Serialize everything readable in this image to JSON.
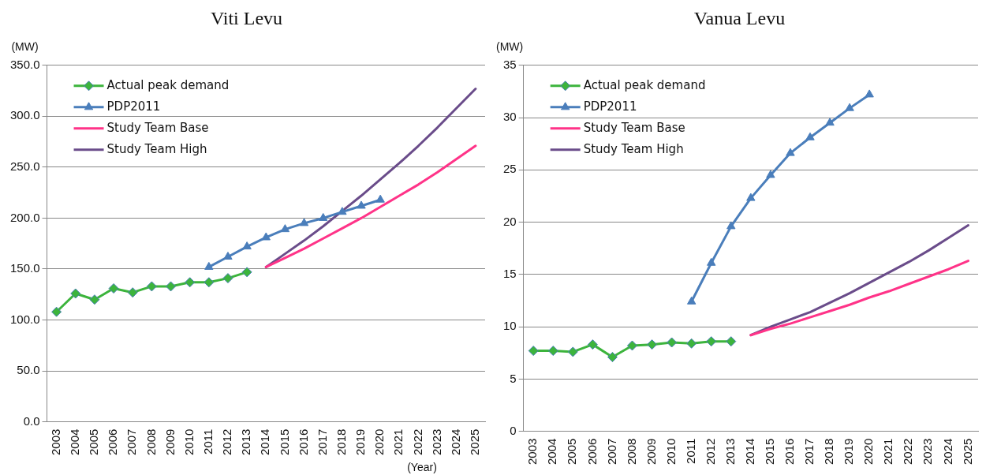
{
  "chart_data": [
    {
      "type": "line",
      "title": "Viti Levu",
      "ylabel": "(MW)",
      "xlabel": "(Year)",
      "categories": [
        "2003",
        "2004",
        "2005",
        "2006",
        "2007",
        "2008",
        "2009",
        "2010",
        "2011",
        "2012",
        "2013",
        "2014",
        "2015",
        "2016",
        "2017",
        "2018",
        "2019",
        "2020",
        "2021",
        "2022",
        "2023",
        "2024",
        "2025"
      ],
      "ylim": [
        0,
        350
      ],
      "yticks": [
        {
          "value": 0,
          "label": "0.0"
        },
        {
          "value": 50,
          "label": "50.0"
        },
        {
          "value": 100,
          "label": "100.0"
        },
        {
          "value": 150,
          "label": "150.0"
        },
        {
          "value": 200,
          "label": "200.0"
        },
        {
          "value": 250,
          "label": "250.0"
        },
        {
          "value": 300,
          "label": "300.0"
        },
        {
          "value": 350,
          "label": "350.0"
        }
      ],
      "grid": "y",
      "legend": "top left",
      "line_style": "solid",
      "series": [
        {
          "name": "Actual peak demand",
          "color": "#3cb43c",
          "marker": "diamond",
          "values": [
            108,
            126,
            120,
            131,
            127,
            133,
            133,
            137,
            137,
            141,
            147,
            null,
            null,
            null,
            null,
            null,
            null,
            null,
            null,
            null,
            null,
            null,
            null
          ]
        },
        {
          "name": "PDP2011",
          "color": "#4a7ebb",
          "marker": "triangle",
          "values": [
            null,
            null,
            null,
            null,
            null,
            null,
            null,
            null,
            152,
            162,
            172,
            181,
            189,
            195,
            200,
            206,
            212,
            218,
            null,
            null,
            null,
            null,
            null
          ]
        },
        {
          "name": "Study Team Base",
          "color": "#ff3388",
          "marker": "none",
          "values": [
            null,
            null,
            null,
            null,
            null,
            null,
            null,
            null,
            null,
            null,
            null,
            152,
            161,
            170,
            180,
            190,
            200,
            211,
            222,
            233,
            245,
            258,
            271
          ]
        },
        {
          "name": "Study Team High",
          "color": "#6a4c8a",
          "marker": "none",
          "values": [
            null,
            null,
            null,
            null,
            null,
            null,
            null,
            null,
            null,
            null,
            null,
            152,
            165,
            178,
            192,
            207,
            222,
            238,
            254,
            271,
            289,
            308,
            327
          ]
        }
      ]
    },
    {
      "type": "line",
      "title": "Vanua Levu",
      "ylabel": "(MW)",
      "categories": [
        "2003",
        "2004",
        "2005",
        "2006",
        "2007",
        "2008",
        "2009",
        "2010",
        "2011",
        "2012",
        "2013",
        "2014",
        "2015",
        "2016",
        "2017",
        "2018",
        "2019",
        "2020",
        "2021",
        "2022",
        "2023",
        "2024",
        "2025"
      ],
      "ylim": [
        0,
        35
      ],
      "yticks": [
        0,
        5,
        10,
        15,
        20,
        25,
        30,
        35
      ],
      "grid": "y",
      "legend": "top left",
      "line_style": "solid",
      "series": [
        {
          "name": "Actual peak demand",
          "color": "#3cb43c",
          "marker": "diamond",
          "values": [
            7.7,
            7.7,
            7.6,
            8.3,
            7.1,
            8.2,
            8.3,
            8.5,
            8.4,
            8.6,
            8.6,
            null,
            null,
            null,
            null,
            null,
            null,
            null,
            null,
            null,
            null,
            null,
            null
          ]
        },
        {
          "name": "PDP2011",
          "color": "#4a7ebb",
          "marker": "triangle",
          "values": [
            null,
            null,
            null,
            null,
            null,
            null,
            null,
            null,
            12.4,
            16.1,
            19.6,
            22.3,
            24.5,
            26.6,
            28.1,
            29.5,
            30.9,
            32.2,
            null,
            null,
            null,
            null,
            null
          ]
        },
        {
          "name": "Study Team Base",
          "color": "#ff3388",
          "marker": "none",
          "values": [
            null,
            null,
            null,
            null,
            null,
            null,
            null,
            null,
            null,
            null,
            null,
            9.2,
            9.8,
            10.3,
            10.9,
            11.5,
            12.1,
            12.8,
            13.4,
            14.1,
            14.8,
            15.5,
            16.3
          ]
        },
        {
          "name": "Study Team High",
          "color": "#6a4c8a",
          "marker": "none",
          "values": [
            null,
            null,
            null,
            null,
            null,
            null,
            null,
            null,
            null,
            null,
            null,
            9.2,
            10.0,
            10.7,
            11.4,
            12.3,
            13.2,
            14.2,
            15.2,
            16.2,
            17.3,
            18.5,
            19.7
          ]
        }
      ]
    }
  ]
}
